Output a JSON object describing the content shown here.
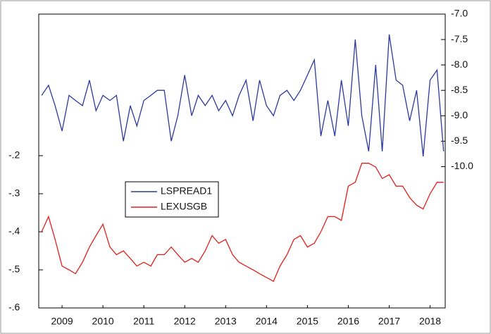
{
  "chart_data": {
    "type": "line",
    "x": [
      2009.0,
      2009.17,
      2009.33,
      2009.5,
      2009.67,
      2009.83,
      2010.0,
      2010.17,
      2010.33,
      2010.5,
      2010.67,
      2010.83,
      2011.0,
      2011.17,
      2011.33,
      2011.5,
      2011.67,
      2011.83,
      2012.0,
      2012.17,
      2012.33,
      2012.5,
      2012.67,
      2012.83,
      2013.0,
      2013.17,
      2013.33,
      2013.5,
      2013.67,
      2013.83,
      2014.0,
      2014.17,
      2014.33,
      2014.5,
      2014.67,
      2014.83,
      2015.0,
      2015.17,
      2015.33,
      2015.5,
      2015.67,
      2015.83,
      2016.0,
      2016.17,
      2016.33,
      2016.5,
      2016.67,
      2016.83,
      2017.0,
      2017.17,
      2017.33,
      2017.5,
      2017.67,
      2017.83,
      2018.0,
      2018.17,
      2018.33,
      2018.5,
      2018.67,
      2018.83
    ],
    "series": [
      {
        "name": "LSPREAD1",
        "color": "#2b3a9c",
        "axis": "y2",
        "values": [
          -8.6,
          -8.4,
          -8.8,
          -9.3,
          -8.6,
          -8.7,
          -8.8,
          -8.3,
          -8.9,
          -8.6,
          -8.7,
          -8.6,
          -9.5,
          -8.8,
          -9.2,
          -8.7,
          -8.6,
          -8.5,
          -8.5,
          -9.5,
          -9.0,
          -8.2,
          -9.0,
          -8.6,
          -8.8,
          -8.6,
          -8.9,
          -8.7,
          -9.0,
          -8.6,
          -8.3,
          -9.1,
          -8.3,
          -8.8,
          -9.0,
          -8.6,
          -8.5,
          -8.7,
          -8.5,
          -8.2,
          -7.9,
          -9.4,
          -8.7,
          -9.4,
          -8.3,
          -9.2,
          -7.5,
          -9.0,
          -9.7,
          -8.0,
          -9.7,
          -7.4,
          -8.3,
          -8.4,
          -9.1,
          -8.5,
          -9.8,
          -8.3,
          -8.1,
          -9.7
        ]
      },
      {
        "name": "LEXUSGB",
        "color": "#e0201b",
        "values": [
          -0.4,
          -0.36,
          -0.42,
          -0.49,
          -0.5,
          -0.51,
          -0.48,
          -0.44,
          -0.41,
          -0.38,
          -0.44,
          -0.46,
          -0.45,
          -0.47,
          -0.49,
          -0.48,
          -0.49,
          -0.46,
          -0.46,
          -0.44,
          -0.46,
          -0.48,
          -0.47,
          -0.48,
          -0.45,
          -0.41,
          -0.43,
          -0.42,
          -0.46,
          -0.48,
          -0.49,
          -0.5,
          -0.51,
          -0.52,
          -0.53,
          -0.49,
          -0.46,
          -0.42,
          -0.41,
          -0.44,
          -0.43,
          -0.4,
          -0.36,
          -0.36,
          -0.37,
          -0.28,
          -0.27,
          -0.22,
          -0.22,
          -0.23,
          -0.26,
          -0.25,
          -0.28,
          -0.28,
          -0.31,
          -0.33,
          -0.34,
          -0.3,
          -0.27,
          -0.27
        ]
      }
    ],
    "xlim": [
      2008.93,
      2018.87
    ],
    "xticks": [
      {
        "value": 2009.5,
        "label": "2009"
      },
      {
        "value": 2010.5,
        "label": "2010"
      },
      {
        "value": 2011.5,
        "label": "2011"
      },
      {
        "value": 2012.5,
        "label": "2012"
      },
      {
        "value": 2013.5,
        "label": "2013"
      },
      {
        "value": 2014.5,
        "label": "2014"
      },
      {
        "value": 2015.5,
        "label": "2015"
      },
      {
        "value": 2016.5,
        "label": "2016"
      },
      {
        "value": 2017.5,
        "label": "2017"
      },
      {
        "value": 2018.5,
        "label": "2018"
      }
    ],
    "ylim": [
      -0.6,
      0.172
    ],
    "yticks": [
      {
        "value": -0.6,
        "label": "-.6"
      },
      {
        "value": -0.5,
        "label": "-.5"
      },
      {
        "value": -0.4,
        "label": "-.4"
      },
      {
        "value": -0.3,
        "label": "-.3"
      },
      {
        "value": -0.2,
        "label": "-.2"
      }
    ],
    "y2lim": [
      -12.78,
      -7.0
    ],
    "y2ticks": [
      {
        "value": -10.0,
        "label": "-10.0"
      },
      -9.5,
      {
        "value": -9.0,
        "label": "-9.0"
      },
      -8.5,
      {
        "value": -8.0,
        "label": "-8.0"
      },
      -7.5,
      {
        "value": -7.0,
        "label": "-7.0"
      }
    ],
    "legend": "center-left"
  }
}
